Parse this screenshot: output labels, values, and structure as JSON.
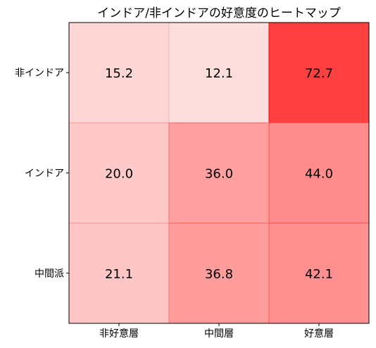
{
  "chart_data": {
    "type": "heatmap",
    "title": "インドア/非インドアの好意度のヒートマップ",
    "xlabel": "",
    "ylabel": "",
    "x_categories": [
      "非好意層",
      "中間層",
      "好意層"
    ],
    "y_categories": [
      "非インドア",
      "インドア",
      "中間派"
    ],
    "values": [
      [
        15.2,
        12.1,
        72.7
      ],
      [
        20.0,
        36.0,
        44.0
      ],
      [
        21.1,
        36.8,
        42.1
      ]
    ],
    "value_labels": [
      [
        "15.2",
        "12.1",
        "72.7"
      ],
      [
        "20.0",
        "36.0",
        "44.0"
      ],
      [
        "21.1",
        "36.8",
        "42.1"
      ]
    ],
    "color_low": "#ffffff",
    "color_high": "#ff0000",
    "grid": false,
    "legend": "none"
  }
}
